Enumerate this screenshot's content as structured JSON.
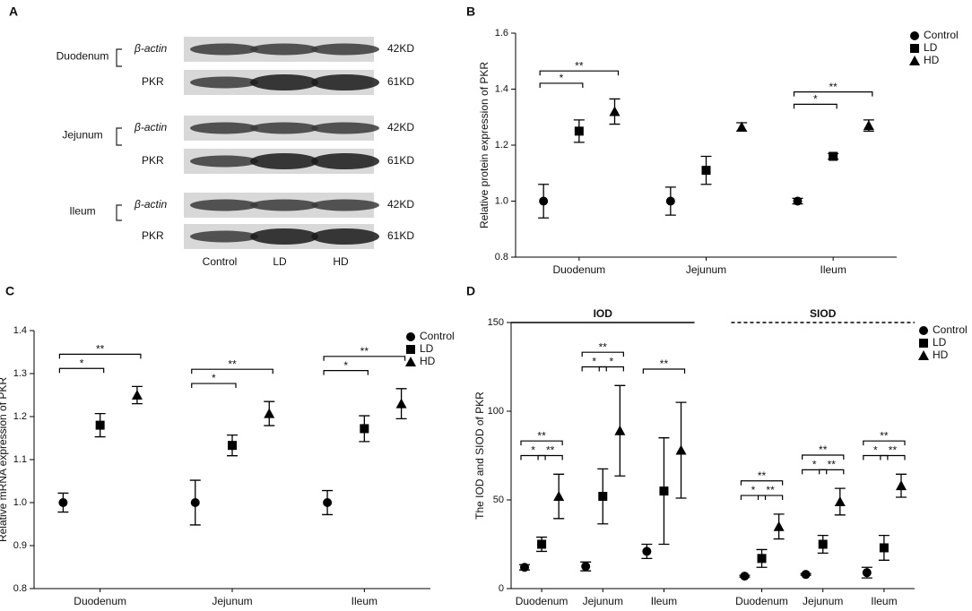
{
  "blot": {
    "panel": "A",
    "lanes": [
      "Control",
      "LD",
      "HD"
    ],
    "tissues": [
      {
        "name": "Duodenum",
        "bands": [
          {
            "name": "β-actin",
            "size": "42KD"
          },
          {
            "name": "PKR",
            "size": "61KD"
          }
        ]
      },
      {
        "name": "Jejunum",
        "bands": [
          {
            "name": "β-actin",
            "size": "42KD"
          },
          {
            "name": "PKR",
            "size": "61KD"
          }
        ]
      },
      {
        "name": "Ileum",
        "bands": [
          {
            "name": "β-actin",
            "size": "42KD"
          },
          {
            "name": "PKR",
            "size": "61KD"
          }
        ]
      }
    ]
  },
  "chart_data": [
    {
      "panel": "B",
      "type": "errorbar",
      "ylabel": "Relative protein expression of PKR",
      "categories": [
        "Duodenum",
        "Jejunum",
        "Ileum"
      ],
      "series": [
        {
          "name": "Control",
          "marker": "circle",
          "color": "#000000",
          "values": [
            1.0,
            1.0,
            1.0
          ],
          "errors": [
            0.06,
            0.05,
            0.01
          ]
        },
        {
          "name": "LD",
          "marker": "square",
          "color": "#000000",
          "values": [
            1.25,
            1.11,
            1.16
          ],
          "errors": [
            0.04,
            0.05,
            0.01
          ]
        },
        {
          "name": "HD",
          "marker": "triangle",
          "color": "#000000",
          "values": [
            1.32,
            1.265,
            1.27
          ],
          "errors": [
            0.045,
            0.015,
            0.02
          ]
        }
      ],
      "ylim": [
        0.8,
        1.6
      ],
      "yticks": [
        0.8,
        {
          "value": 1,
          "label": "1.0"
        },
        1.2,
        1.4,
        1.6
      ],
      "annotations": [
        {
          "label": "*",
          "category": 0,
          "from": 0,
          "to": 1
        },
        {
          "label": "**",
          "category": 0,
          "from": 0,
          "to": 2
        },
        {
          "label": "*",
          "category": 2,
          "from": 0,
          "to": 1
        },
        {
          "label": "**",
          "category": 2,
          "from": 0,
          "to": 2
        }
      ],
      "legend": "upper right"
    },
    {
      "panel": "C",
      "type": "errorbar",
      "ylabel": "Relative mRNA expression of PKR",
      "categories": [
        "Duodenum",
        "Jejunum",
        "Ileum"
      ],
      "series": [
        {
          "name": "Control",
          "marker": "circle",
          "color": "#000000",
          "values": [
            1.0,
            1.0,
            1.0
          ],
          "errors": [
            0.022,
            0.052,
            0.028
          ]
        },
        {
          "name": "LD",
          "marker": "square",
          "color": "#000000",
          "values": [
            1.18,
            1.133,
            1.172
          ],
          "errors": [
            0.027,
            0.024,
            0.03
          ]
        },
        {
          "name": "HD",
          "marker": "triangle",
          "color": "#000000",
          "values": [
            1.25,
            1.207,
            1.23
          ],
          "errors": [
            0.02,
            0.028,
            0.035
          ]
        }
      ],
      "ylim": [
        0.8,
        1.4
      ],
      "yticks": [
        0.8,
        0.9,
        {
          "value": 1,
          "label": "1.0"
        },
        1.1,
        1.2,
        1.3,
        1.4
      ],
      "annotations": [
        {
          "label": "*",
          "category": 0,
          "from": 0,
          "to": 1
        },
        {
          "label": "**",
          "category": 0,
          "from": 0,
          "to": 2
        },
        {
          "label": "*",
          "category": 1,
          "from": 0,
          "to": 1
        },
        {
          "label": "**",
          "category": 1,
          "from": 0,
          "to": 2
        },
        {
          "label": "*",
          "category": 2,
          "from": 0,
          "to": 1
        },
        {
          "label": "**",
          "category": 2,
          "from": 0,
          "to": 2
        }
      ],
      "legend": "upper right"
    },
    {
      "panel": "D",
      "type": "errorbar",
      "ylabel": "The IOD and SIOD of PKR",
      "categories": [
        "Duodenum",
        "Jejunum",
        "Ileum",
        "Duodenum",
        "Jejunum",
        "Ileum"
      ],
      "groups": [
        {
          "label": "IOD",
          "categories": [
            0,
            2
          ],
          "line": "solid"
        },
        {
          "label": "SIOD",
          "categories": [
            3,
            5
          ],
          "line": "dashed"
        }
      ],
      "series": [
        {
          "name": "Control",
          "marker": "circle",
          "color": "#000000",
          "values": [
            12,
            12.5,
            21,
            7,
            8,
            9
          ],
          "errors": [
            1.5,
            2.5,
            4,
            0.5,
            0.5,
            3
          ]
        },
        {
          "name": "LD",
          "marker": "square",
          "color": "#000000",
          "values": [
            25,
            52,
            55,
            17,
            25,
            23
          ],
          "errors": [
            4,
            15.5,
            30,
            5,
            5,
            7
          ]
        },
        {
          "name": "HD",
          "marker": "triangle",
          "color": "#000000",
          "values": [
            52,
            89,
            78,
            35,
            49,
            58
          ],
          "errors": [
            12.5,
            25.5,
            27,
            7,
            7.5,
            6.5
          ]
        }
      ],
      "ylim": [
        0,
        150
      ],
      "yticks": [
        0,
        50,
        100,
        150
      ],
      "annotations": [
        {
          "label": "*",
          "category": 0,
          "from": 0,
          "to": 1
        },
        {
          "label": "**",
          "category": 0,
          "from": 1,
          "to": 2
        },
        {
          "label": "**",
          "category": 0,
          "from": 0,
          "to": 2
        },
        {
          "label": "*",
          "category": 1,
          "from": 0,
          "to": 1
        },
        {
          "label": "*",
          "category": 1,
          "from": 1,
          "to": 2
        },
        {
          "label": "**",
          "category": 1,
          "from": 0,
          "to": 2
        },
        {
          "label": "**",
          "category": 2,
          "from": 0,
          "to": 2
        },
        {
          "label": "*",
          "category": 3,
          "from": 0,
          "to": 1
        },
        {
          "label": "**",
          "category": 3,
          "from": 1,
          "to": 2
        },
        {
          "label": "**",
          "category": 3,
          "from": 0,
          "to": 2
        },
        {
          "label": "*",
          "category": 4,
          "from": 0,
          "to": 1
        },
        {
          "label": "**",
          "category": 4,
          "from": 1,
          "to": 2
        },
        {
          "label": "**",
          "category": 4,
          "from": 0,
          "to": 2
        },
        {
          "label": "*",
          "category": 5,
          "from": 0,
          "to": 1
        },
        {
          "label": "**",
          "category": 5,
          "from": 1,
          "to": 2
        },
        {
          "label": "**",
          "category": 5,
          "from": 0,
          "to": 2
        }
      ],
      "legend": "upper right"
    }
  ]
}
